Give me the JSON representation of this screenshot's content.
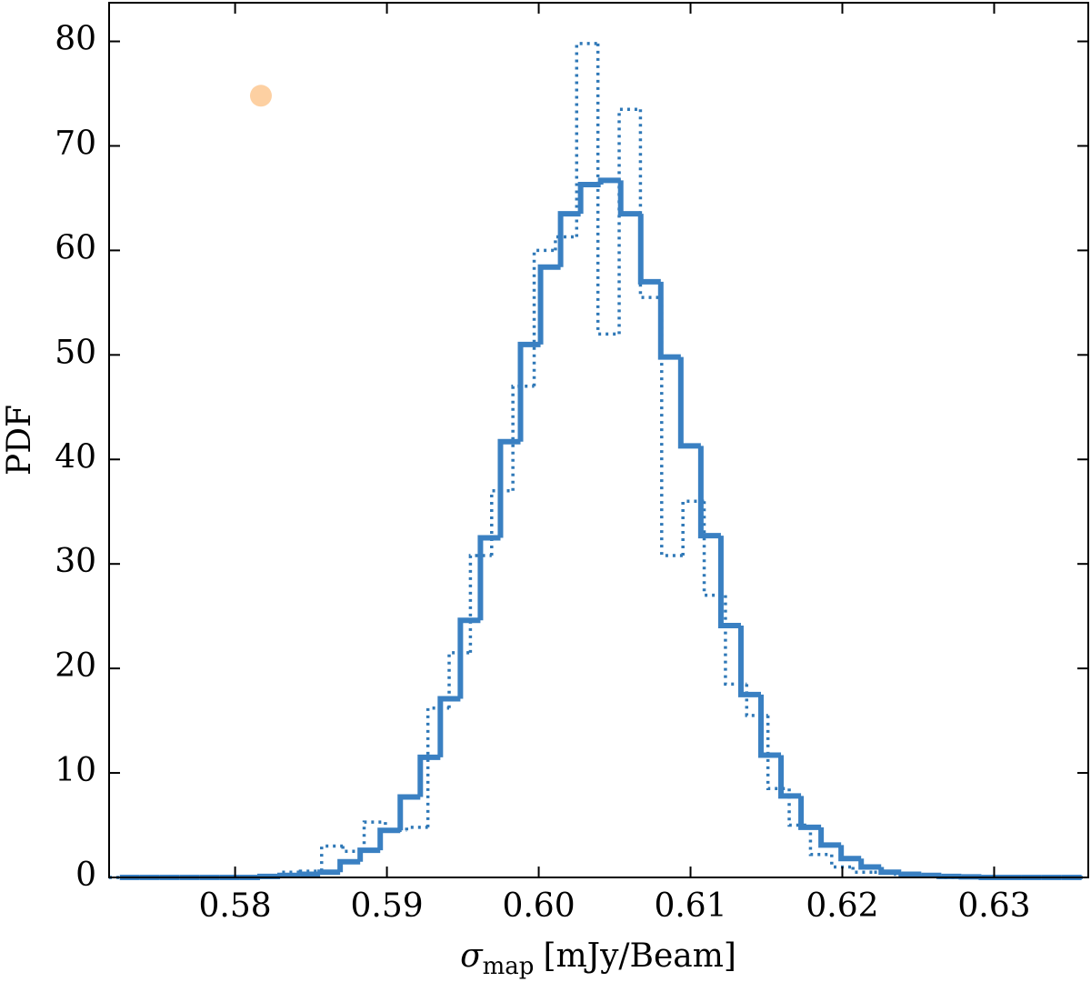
{
  "chart_data": {
    "type": "histogram",
    "ylabel": "PDF",
    "xlabel": {
      "symbol": "σ",
      "subscript": "map",
      "text": "[mJy/Beam]"
    },
    "xlim": [
      0.5717,
      0.6362
    ],
    "ylim": [
      0,
      83.7
    ],
    "xticks": [
      0.58,
      0.59,
      {
        "value": 0.6,
        "label": "0.60"
      },
      0.61,
      0.62,
      0.63
    ],
    "yticks": [
      0,
      10,
      20,
      30,
      40,
      50,
      60,
      70,
      80
    ],
    "series": [
      {
        "style": "dotted",
        "color": "#2f78b7",
        "bins": [
          0.5717,
          0.5731,
          0.5745,
          0.5759,
          0.5773,
          0.5787,
          0.5801,
          0.5815,
          0.5829,
          0.5843,
          0.5857,
          0.5871,
          0.5885,
          0.5899,
          0.5913,
          0.5927,
          0.5941,
          0.5955,
          0.5969,
          0.5983,
          0.5997,
          0.6011,
          0.6025,
          0.6039,
          0.6053,
          0.6067,
          0.6081,
          0.6095,
          0.6109,
          0.6123,
          0.6137,
          0.6151,
          0.6165,
          0.6179,
          0.6193,
          0.6207,
          0.6221,
          0.6235,
          0.6249,
          0.6263,
          0.6277,
          0.6291,
          0.6305,
          0.6319,
          0.6333,
          0.6347,
          0.6361
        ],
        "values": [
          0,
          0,
          0,
          0,
          0,
          0,
          0,
          0.1,
          0.5,
          0.6,
          3.0,
          2.5,
          5.3,
          4.5,
          4.8,
          16.2,
          21.5,
          30.8,
          37.0,
          47.0,
          60.0,
          61.3,
          79.8,
          52.0,
          73.5,
          55.5,
          30.8,
          36.0,
          27.0,
          18.5,
          15.5,
          8.5,
          5.0,
          2.2,
          1.0,
          0.5,
          0.5,
          0.3,
          0.1,
          0,
          0,
          0,
          0,
          0,
          0,
          0
        ]
      },
      {
        "style": "solid",
        "color": "#3a80c2",
        "bins": [
          0.5724,
          0.57372,
          0.57504,
          0.57636,
          0.57768,
          0.579,
          0.58032,
          0.58164,
          0.58296,
          0.58428,
          0.5856,
          0.58692,
          0.58824,
          0.58956,
          0.59088,
          0.5922,
          0.59352,
          0.59484,
          0.59616,
          0.59748,
          0.5988,
          0.60012,
          0.60144,
          0.60276,
          0.60408,
          0.6054,
          0.60672,
          0.60804,
          0.60936,
          0.61068,
          0.612,
          0.61332,
          0.61464,
          0.61596,
          0.61728,
          0.6186,
          0.61992,
          0.62124,
          0.62256,
          0.62388,
          0.6252,
          0.62652,
          0.62784,
          0.62916,
          0.63048,
          0.6318,
          0.63312,
          0.63444,
          0.63576
        ],
        "values": [
          0,
          0,
          0,
          0,
          0,
          0,
          0,
          0.1,
          0.2,
          0.3,
          0.5,
          1.5,
          2.6,
          4.5,
          7.7,
          11.5,
          17.1,
          24.6,
          32.5,
          41.7,
          51.0,
          58.4,
          63.5,
          66.3,
          66.7,
          63.5,
          57.0,
          49.8,
          41.3,
          32.7,
          24.1,
          17.5,
          11.7,
          7.8,
          4.8,
          3.1,
          1.8,
          1.0,
          0.5,
          0.3,
          0.2,
          0.1,
          0.05,
          0,
          0,
          0,
          0,
          0
        ]
      }
    ],
    "points": [
      {
        "x": 0.5817,
        "y": 74.8,
        "color": "#fdd0a2"
      }
    ]
  }
}
